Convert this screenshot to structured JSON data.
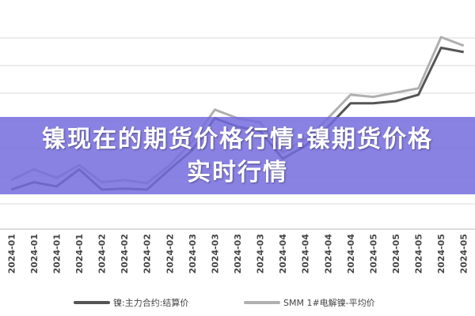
{
  "chart_data": {
    "type": "line",
    "title": "镍现在的期货价格行情:镍期货价格实时行情",
    "categories": [
      "2024-01",
      "2024-01",
      "2024-01",
      "2024-01",
      "2024-02",
      "2024-02",
      "2024-02",
      "2024-02",
      "2024-03",
      "2024-03",
      "2024-03",
      "2024-03",
      "2024-04",
      "2024-04",
      "2024-04",
      "2024-04",
      "2024-05",
      "2024-05",
      "2024-05",
      "2024-05",
      "2024-05"
    ],
    "ylim": [
      0,
      100
    ],
    "series": [
      {
        "name": "镍:主力合约:结算价",
        "color": "#555555",
        "values": [
          18.5,
          22,
          20,
          28,
          18.5,
          19,
          18.5,
          28,
          37,
          52,
          48,
          46,
          33,
          39,
          48,
          59,
          59,
          60,
          63,
          85,
          83
        ]
      },
      {
        "name": "SMM 1#电解镍-平均价",
        "color": "#b0b0b0",
        "values": [
          23,
          28,
          24,
          30,
          22,
          23,
          21.5,
          30,
          41,
          56,
          52,
          50,
          36,
          42,
          52,
          63,
          62,
          64,
          66,
          90,
          86
        ]
      }
    ]
  }
}
